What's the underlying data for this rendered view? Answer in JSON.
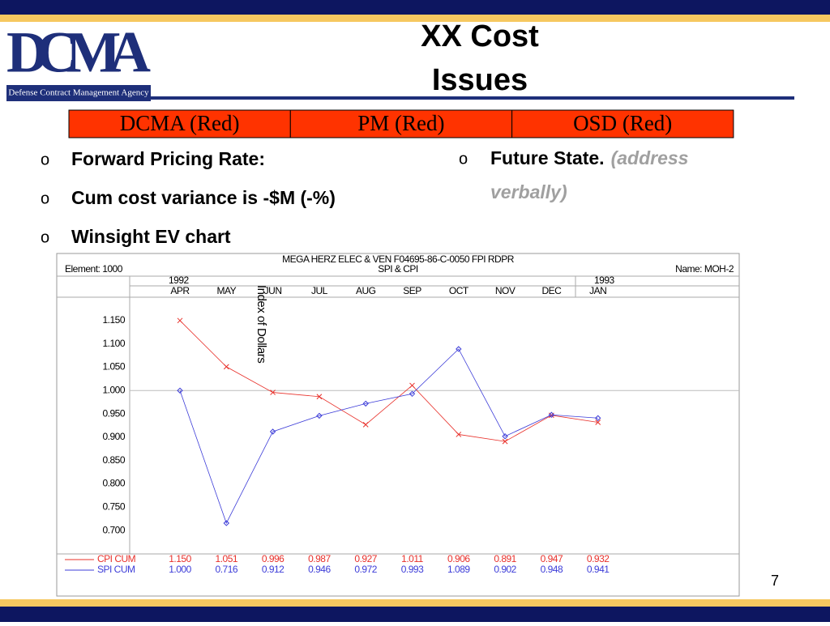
{
  "slide": {
    "logo": "DCMA",
    "agency": "Defense Contract Management Agency",
    "title_lines": [
      "XX Cost",
      "Issues"
    ],
    "status": [
      "DCMA (Red)",
      "PM (Red)",
      "OSD (Red)"
    ],
    "bullet": "o",
    "bullets": [
      "Forward Pricing Rate:",
      "Cum cost variance is -$M (-%)",
      "Winsight EV chart"
    ],
    "future": "Future State.",
    "future_note_lines": [
      "(address",
      "verbally)"
    ],
    "page": "7"
  },
  "chart_data": {
    "type": "line",
    "title": "MEGA HERZ ELEC & VEN F04695-86-C-0050 FPI RDPR",
    "subtitle": "SPI & CPI",
    "element": "Element: 1000",
    "name": "Name: MOH-2",
    "years": [
      "1992",
      "1993"
    ],
    "y_label": "Index of Dollars",
    "categories": [
      "APR",
      "MAY",
      "JUN",
      "JUL",
      "AUG",
      "SEP",
      "OCT",
      "NOV",
      "DEC",
      "JAN"
    ],
    "series": [
      {
        "name": "CPI CUM",
        "color": "#e8302a",
        "values": [
          1.15,
          1.051,
          0.996,
          0.987,
          0.927,
          1.011,
          0.906,
          0.891,
          0.947,
          0.932
        ],
        "value_labels": [
          "1.150",
          "1.051",
          "0.996",
          "0.987",
          "0.927",
          "1.011",
          "0.906",
          "0.891",
          "0.947",
          "0.932"
        ]
      },
      {
        "name": "SPI CUM",
        "color": "#3c3cd8",
        "values": [
          1,
          0.716,
          0.912,
          0.946,
          0.972,
          0.993,
          1.089,
          0.902,
          0.948,
          0.941
        ],
        "value_labels": [
          "1.000",
          "0.716",
          "0.912",
          "0.946",
          "0.972",
          "0.993",
          "1.089",
          "0.902",
          "0.948",
          "0.941"
        ]
      }
    ],
    "ylim": [
      0.65,
      1.2
    ],
    "yticks": [
      {
        "value": 0.7,
        "label": "0.700"
      },
      {
        "value": 0.75,
        "label": "0.750"
      },
      {
        "value": 0.8,
        "label": "0.800"
      },
      {
        "value": 0.85,
        "label": "0.850"
      },
      {
        "value": 0.9,
        "label": "0.900"
      },
      {
        "value": 0.95,
        "label": "0.950"
      },
      {
        "value": 1,
        "label": "1.000"
      },
      {
        "value": 1.05,
        "label": "1.050"
      },
      {
        "value": 1.1,
        "label": "1.100"
      },
      {
        "value": 1.15,
        "label": "1.150"
      }
    ],
    "hline": 1
  }
}
